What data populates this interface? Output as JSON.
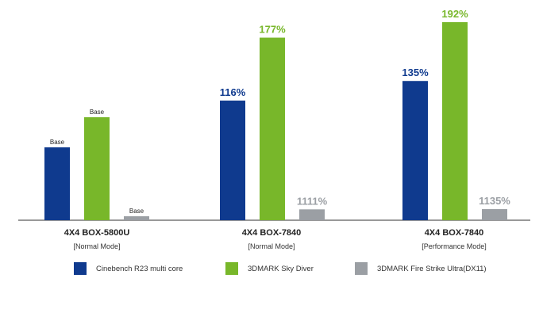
{
  "chart_data": {
    "type": "bar",
    "colors": {
      "cinebench": "#0f3a8e",
      "skydiver": "#78b72a",
      "firestrike": "#9b9fa4"
    },
    "categories": [
      {
        "name": "4X4 BOX-5800U",
        "mode": "[Normal Mode]"
      },
      {
        "name": "4X4 BOX-7840",
        "mode": "[Normal Mode]"
      },
      {
        "name": "4X4 BOX-7840",
        "mode": "[Performance Mode]"
      }
    ],
    "series": [
      {
        "name": "Cinebench R23 multi core",
        "color_key": "cinebench",
        "values": [
          100,
          116,
          135
        ],
        "labels": [
          "Base",
          "116%",
          "135%"
        ]
      },
      {
        "name": "3DMARK Sky Diver",
        "color_key": "skydiver",
        "values": [
          100,
          177,
          192
        ],
        "labels": [
          "Base",
          "177%",
          "192%"
        ]
      },
      {
        "name": "3DMARK Fire Strike Ultra(DX11)",
        "color_key": "firestrike",
        "values": [
          100,
          1111,
          1135
        ],
        "labels": [
          "Base",
          "1111%",
          "1135%"
        ]
      }
    ],
    "legend_position": "bottom",
    "grid": false
  }
}
